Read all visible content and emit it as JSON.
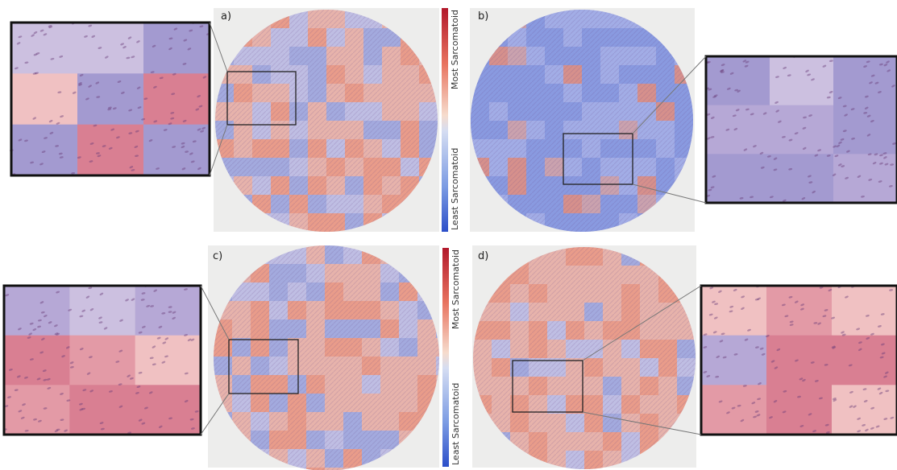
{
  "panels": [
    {
      "label": "a)",
      "colorbar": {
        "top": "Most Sarcomatoid",
        "bottom": "Least Sarcomatoid"
      }
    },
    {
      "label": "b)"
    },
    {
      "label": "c)",
      "colorbar": {
        "top": "Most Sarcomatoid",
        "bottom": "Least Sarcomatoid"
      }
    },
    {
      "label": "d)"
    }
  ]
}
